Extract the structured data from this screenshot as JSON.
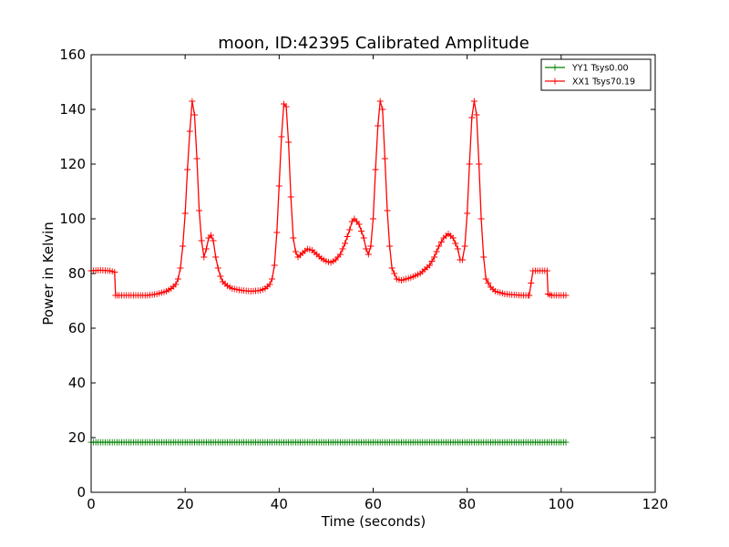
{
  "chart_data": {
    "type": "line",
    "title": "moon, ID:42395 Calibrated Amplitude",
    "xlabel": "Time (seconds)",
    "ylabel": "Power in Kelvin",
    "xlim": [
      0,
      120
    ],
    "ylim": [
      0,
      160
    ],
    "xticks": [
      0,
      20,
      40,
      60,
      80,
      100,
      120
    ],
    "yticks": [
      0,
      20,
      40,
      60,
      80,
      100,
      120,
      140,
      160
    ],
    "grid": false,
    "legend_position": "top-right",
    "marker": "+",
    "series": [
      {
        "name": "YY1 Tsys0.00",
        "color": "#008000",
        "x": [
          0,
          101
        ],
        "y": [
          18.3,
          18.3
        ]
      },
      {
        "name": "XX1 Tsys70.19",
        "color": "#ff0000",
        "x": [
          0,
          2,
          4,
          5,
          5.2,
          6,
          8,
          10,
          12,
          14,
          16,
          17,
          18,
          18.5,
          19,
          19.5,
          20,
          20.5,
          21,
          21.5,
          22,
          22.5,
          23,
          23.5,
          24,
          24.5,
          25,
          25.5,
          26,
          26.5,
          27,
          27.5,
          28,
          29,
          30,
          32,
          34,
          36,
          37,
          38,
          38.5,
          39,
          39.5,
          40,
          40.5,
          41,
          41.5,
          42,
          42.5,
          43,
          43.5,
          44,
          45,
          46,
          47,
          48,
          49,
          50,
          51,
          52,
          53,
          54,
          55,
          55.5,
          56,
          57,
          58,
          58.5,
          59,
          59.5,
          60,
          60.5,
          61,
          61.5,
          62,
          62.5,
          63,
          63.5,
          64,
          65,
          66,
          68,
          70,
          72,
          73,
          74,
          75,
          76,
          77,
          78,
          78.5,
          79,
          79.5,
          80,
          80.5,
          81,
          81.5,
          82,
          82.5,
          83,
          83.5,
          84,
          85,
          86,
          88,
          90,
          92,
          93,
          93.2,
          94,
          95,
          96,
          97,
          97.2,
          98,
          100,
          101
        ],
        "y": [
          81,
          81.2,
          81,
          80.5,
          72,
          72,
          72,
          72,
          72,
          72.5,
          73.5,
          74.5,
          76,
          78,
          82,
          90,
          102,
          118,
          132,
          143,
          138,
          122,
          103,
          92,
          86,
          89,
          93,
          94,
          92,
          86,
          82,
          79,
          77,
          75.5,
          74.5,
          73.8,
          73.5,
          73.8,
          74.5,
          76,
          78,
          83,
          95,
          112,
          130,
          142,
          141,
          128,
          108,
          93,
          88,
          86,
          87.5,
          89,
          88.5,
          87,
          85.5,
          84.5,
          84,
          85,
          87,
          91,
          96,
          99,
          100,
          98,
          93,
          89,
          87,
          90,
          100,
          118,
          134,
          143,
          140,
          122,
          103,
          90,
          82,
          78,
          77.5,
          78.5,
          80,
          83,
          86,
          90,
          93,
          94.5,
          93,
          89,
          85,
          85,
          90,
          102,
          120,
          137,
          143,
          138,
          120,
          100,
          86,
          78,
          75,
          73.5,
          72.5,
          72.2,
          72,
          72,
          72,
          81,
          81,
          81,
          81,
          72.5,
          72,
          72,
          72
        ]
      }
    ]
  }
}
